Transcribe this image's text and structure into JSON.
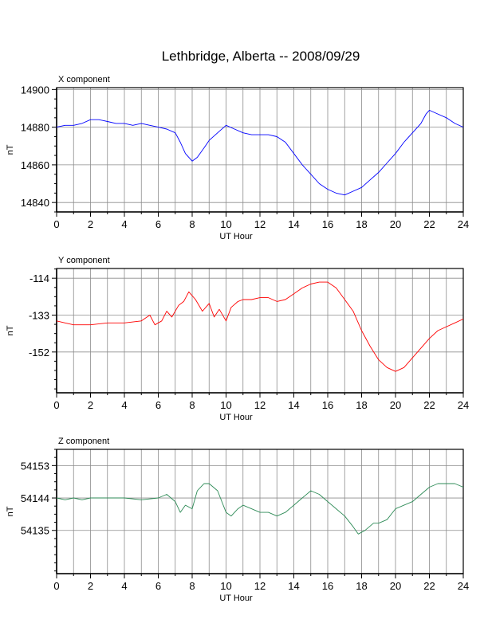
{
  "title": "Lethbridge, Alberta -- 2008/09/29",
  "chart_data": [
    {
      "type": "line",
      "panel_label": "X component",
      "xlabel": "UT Hour",
      "ylabel": "nT",
      "xlim": [
        0,
        24
      ],
      "ylim": [
        14835,
        14901
      ],
      "xticks": [
        0,
        2,
        4,
        6,
        8,
        10,
        12,
        14,
        16,
        18,
        20,
        22,
        24
      ],
      "yticks": [
        14840,
        14860,
        14880,
        14900
      ],
      "grid": true,
      "series": [
        {
          "color": "#0000ff",
          "x": [
            0,
            0.5,
            1,
            1.5,
            2,
            2.5,
            3,
            3.5,
            4,
            4.5,
            5,
            5.5,
            6,
            6.5,
            7,
            7.3,
            7.6,
            8,
            8.3,
            8.7,
            9,
            9.5,
            10,
            10.5,
            11,
            11.5,
            12,
            12.5,
            13,
            13.5,
            14,
            14.5,
            15,
            15.5,
            16,
            16.5,
            17,
            17.5,
            18,
            18.5,
            19,
            19.5,
            20,
            20.5,
            21,
            21.5,
            21.8,
            22,
            22.5,
            23,
            23.5,
            24
          ],
          "y": [
            14880,
            14881,
            14881,
            14882,
            14884,
            14884,
            14883,
            14882,
            14882,
            14881,
            14882,
            14881,
            14880,
            14879,
            14877,
            14872,
            14866,
            14862,
            14864,
            14869,
            14873,
            14877,
            14881,
            14879,
            14877,
            14876,
            14876,
            14876,
            14875,
            14872,
            14866,
            14860,
            14855,
            14850,
            14847,
            14845,
            14844,
            14846,
            14848,
            14852,
            14856,
            14861,
            14866,
            14872,
            14877,
            14882,
            14887,
            14889,
            14887,
            14885,
            14882,
            14880
          ]
        }
      ]
    },
    {
      "type": "line",
      "panel_label": "Y component",
      "xlabel": "UT Hour",
      "ylabel": "nT",
      "xlim": [
        0,
        24
      ],
      "ylim": [
        -173,
        -109
      ],
      "xticks": [
        0,
        2,
        4,
        6,
        8,
        10,
        12,
        14,
        16,
        18,
        20,
        22,
        24
      ],
      "yticks": [
        -114,
        -133,
        -152
      ],
      "grid": true,
      "series": [
        {
          "color": "#ff0000",
          "x": [
            0,
            0.5,
            1,
            1.5,
            2,
            3,
            4,
            5,
            5.5,
            5.8,
            6.2,
            6.5,
            6.8,
            7.2,
            7.5,
            7.8,
            8.2,
            8.6,
            9,
            9.3,
            9.6,
            10,
            10.3,
            10.7,
            11,
            11.5,
            12,
            12.5,
            13,
            13.5,
            14,
            14.5,
            15,
            15.5,
            16,
            16.5,
            17,
            17.5,
            18,
            18.5,
            19,
            19.5,
            20,
            20.5,
            21,
            21.5,
            22,
            22.5,
            23,
            23.5,
            24
          ],
          "y": [
            -136,
            -137,
            -138,
            -138,
            -138,
            -137,
            -137,
            -136,
            -133,
            -138,
            -136,
            -131,
            -134,
            -128,
            -126,
            -121,
            -125,
            -131,
            -127,
            -134,
            -130,
            -136,
            -129,
            -126,
            -125,
            -125,
            -124,
            -124,
            -126,
            -125,
            -122,
            -119,
            -117,
            -116,
            -116,
            -119,
            -125,
            -131,
            -141,
            -149,
            -156,
            -160,
            -162,
            -160,
            -155,
            -150,
            -145,
            -141,
            -139,
            -137,
            -135
          ]
        }
      ]
    },
    {
      "type": "line",
      "panel_label": "Z component",
      "xlabel": "UT Hour",
      "ylabel": "nT",
      "xlim": [
        0,
        24
      ],
      "ylim": [
        54123,
        54157.5
      ],
      "xticks": [
        0,
        2,
        4,
        6,
        8,
        10,
        12,
        14,
        16,
        18,
        20,
        22,
        24
      ],
      "yticks": [
        54135,
        54144,
        54153
      ],
      "grid": true,
      "series": [
        {
          "color": "#2e8b57",
          "x": [
            0,
            0.5,
            1,
            1.5,
            2,
            3,
            4,
            5,
            6,
            6.5,
            7,
            7.3,
            7.6,
            8,
            8.3,
            8.7,
            9,
            9.5,
            10,
            10.3,
            10.7,
            11,
            11.5,
            12,
            12.5,
            13,
            13.5,
            14,
            14.5,
            15,
            15.5,
            16,
            16.5,
            17,
            17.5,
            17.8,
            18.2,
            18.7,
            19,
            19.5,
            20,
            20.5,
            21,
            21.5,
            22,
            22.5,
            23,
            23.5,
            24
          ],
          "y": [
            54144,
            54143.5,
            54144,
            54143.5,
            54144,
            54144,
            54144,
            54143.5,
            54144,
            54145,
            54143,
            54140,
            54142,
            54141,
            54146,
            54148,
            54148,
            54146,
            54140,
            54139,
            54141,
            54142,
            54141,
            54140,
            54140,
            54139,
            54140,
            54142,
            54144,
            54146,
            54145,
            54143,
            54141,
            54139,
            54136,
            54134,
            54135,
            54137,
            54137,
            54138,
            54141,
            54142,
            54143,
            54145,
            54147,
            54148,
            54148,
            54148,
            54147
          ]
        }
      ]
    }
  ]
}
